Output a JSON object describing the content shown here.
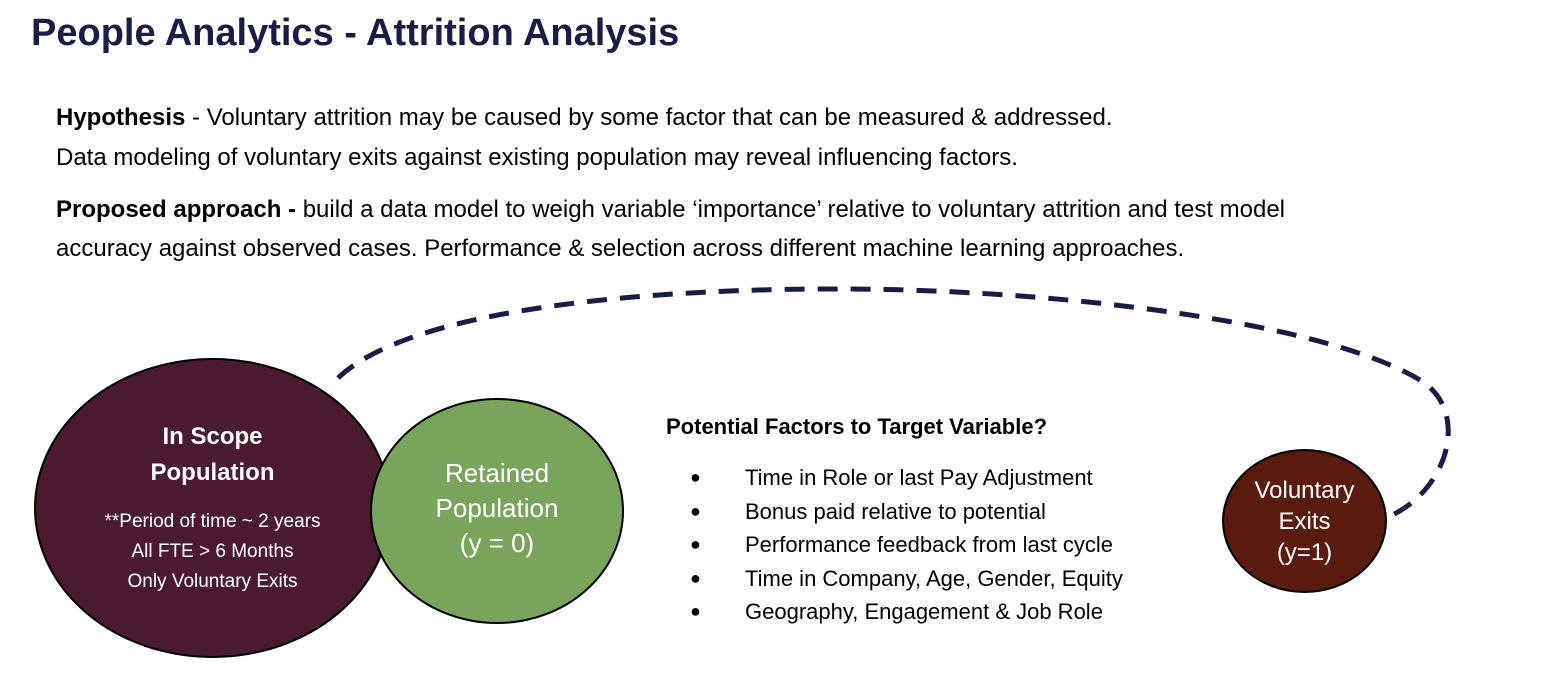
{
  "title": "People Analytics - Attrition Analysis",
  "hypothesis": {
    "label": "Hypothesis",
    "line1": " - Voluntary attrition may be caused by some factor that can be measured & addressed.",
    "line2": "Data modeling of voluntary exits against existing population may reveal influencing factors."
  },
  "approach": {
    "label": "Proposed approach - ",
    "line1": "build a data model to weigh variable ‘importance’ relative to voluntary attrition and test model",
    "line2": "accuracy against observed cases.  Performance & selection across different machine learning approaches."
  },
  "diagram": {
    "in_scope": {
      "title_line1": "In Scope",
      "title_line2": "Population",
      "detail_line1": "**Period of time ~ 2 years",
      "detail_line2": "All FTE > 6 Months",
      "detail_line3": "Only Voluntary Exits",
      "color": "#4a1a30"
    },
    "retained": {
      "line1": "Retained",
      "line2": "Population",
      "line3": "(y = 0)",
      "color": "#79a45b"
    },
    "exits": {
      "line1": "Voluntary",
      "line2": "Exits",
      "line3": "(y=1)",
      "color": "#5a1a0d"
    },
    "connector_color": "#1b1c43"
  },
  "factors": {
    "title": "Potential Factors to Target Variable?",
    "bullet": "●",
    "items": [
      "Time in Role or last Pay Adjustment",
      "Bonus paid relative to potential",
      "Performance feedback from last cycle",
      "Time in Company, Age, Gender, Equity",
      "Geography, Engagement & Job Role"
    ]
  }
}
